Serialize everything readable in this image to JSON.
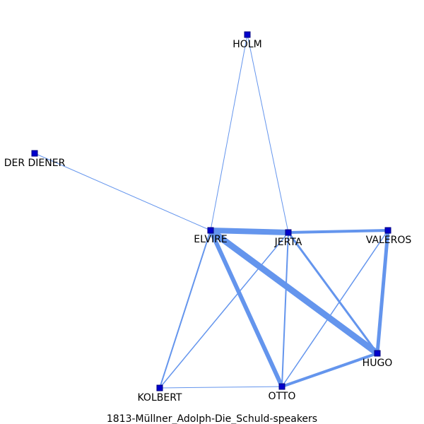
{
  "title": "1813-Müllner_Adolph-Die_Schuld-speakers",
  "colors": {
    "edge": "#6495ED",
    "node_fill": "#0000CD",
    "node_stroke": "#000080",
    "label": "#000000"
  },
  "nodes": [
    {
      "id": "HOLM",
      "label": "HOLM"
    },
    {
      "id": "DER DIENER",
      "label": "DER DIENER"
    },
    {
      "id": "ELVIRE",
      "label": "ELVIRE"
    },
    {
      "id": "JERTA",
      "label": "JERTA"
    },
    {
      "id": "VALEROS",
      "label": "VALEROS"
    },
    {
      "id": "HUGO",
      "label": "HUGO"
    },
    {
      "id": "KOLBERT",
      "label": "KOLBERT"
    },
    {
      "id": "OTTO",
      "label": "OTTO"
    }
  ],
  "edges": [
    {
      "source": "HOLM",
      "target": "ELVIRE",
      "weight": 1
    },
    {
      "source": "HOLM",
      "target": "JERTA",
      "weight": 1
    },
    {
      "source": "DER DIENER",
      "target": "ELVIRE",
      "weight": 1
    },
    {
      "source": "ELVIRE",
      "target": "JERTA",
      "weight": 8
    },
    {
      "source": "JERTA",
      "target": "VALEROS",
      "weight": 4
    },
    {
      "source": "ELVIRE",
      "target": "HUGO",
      "weight": 9
    },
    {
      "source": "ELVIRE",
      "target": "OTTO",
      "weight": 6
    },
    {
      "source": "ELVIRE",
      "target": "KOLBERT",
      "weight": 2
    },
    {
      "source": "JERTA",
      "target": "KOLBERT",
      "weight": 1.5
    },
    {
      "source": "JERTA",
      "target": "OTTO",
      "weight": 2
    },
    {
      "source": "JERTA",
      "target": "HUGO",
      "weight": 3
    },
    {
      "source": "VALEROS",
      "target": "HUGO",
      "weight": 5
    },
    {
      "source": "VALEROS",
      "target": "OTTO",
      "weight": 1.5
    },
    {
      "source": "HUGO",
      "target": "OTTO",
      "weight": 4
    },
    {
      "source": "KOLBERT",
      "target": "OTTO",
      "weight": 1
    }
  ]
}
